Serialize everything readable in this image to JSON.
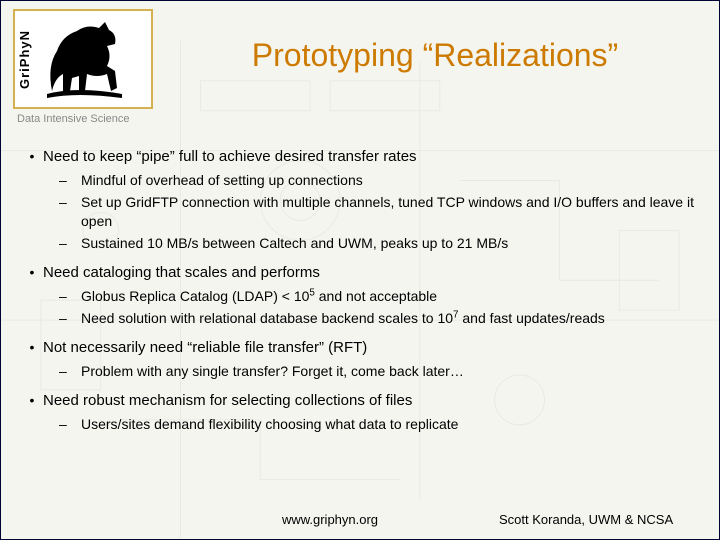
{
  "logo": {
    "vertical_label": "GriPhyN",
    "tagline": "Data Intensive Science",
    "border_color": "#d4b050"
  },
  "title": {
    "text": "Prototyping “Realizations”",
    "color": "#cc7a00",
    "fontsize": 32
  },
  "bullets": [
    {
      "text": "Need to keep “pipe” full to achieve desired transfer rates",
      "sub": [
        "Mindful of overhead of setting up connections",
        "Set up GridFTP connection with multiple channels, tuned TCP windows and I/O buffers and leave it open",
        "Sustained 10 MB/s between Caltech and UWM, peaks up to 21 MB/s"
      ]
    },
    {
      "text": "Need cataloging that scales and performs",
      "sub": [
        "Globus Replica Catalog (LDAP) < 10<sup>5</sup> and not acceptable",
        "Need solution with relational database backend scales to 10<sup>7</sup> and fast updates/reads"
      ]
    },
    {
      "text": "Not necessarily need “reliable file transfer” (RFT)",
      "sub": [
        "Problem with any single transfer? Forget it, come back later…"
      ]
    },
    {
      "text": "Need robust mechanism for selecting collections of files",
      "sub": [
        "Users/sites demand flexibility choosing what data to replicate"
      ]
    }
  ],
  "footer": {
    "url": "www.griphyn.org",
    "credit": "Scott Koranda, UWM & NCSA"
  },
  "background_color": "#f5f5f0",
  "text_color": "#000000"
}
